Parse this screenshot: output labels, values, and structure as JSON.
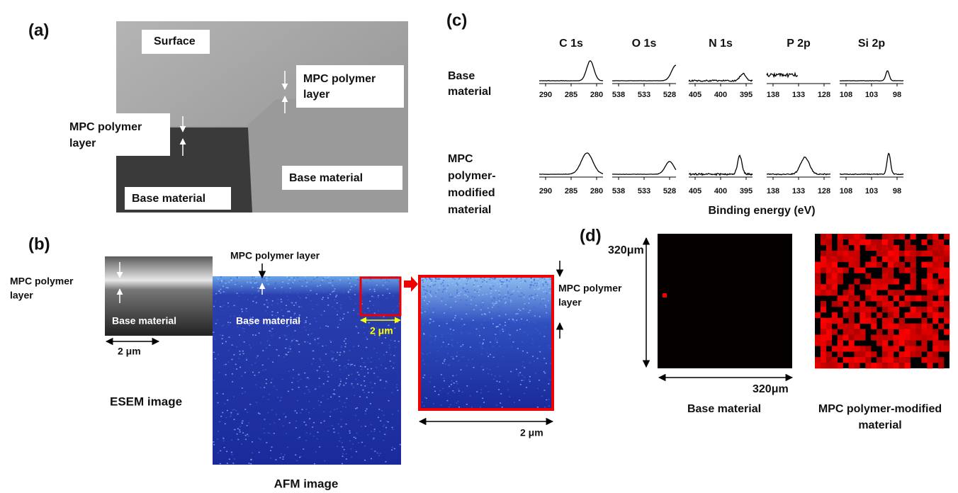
{
  "panel_a": {
    "label": "(a)",
    "surface": "Surface",
    "layer_right": [
      "MPC polymer",
      "layer"
    ],
    "layer_left": [
      "MPC polymer",
      "layer"
    ],
    "base_left": "Base material",
    "base_right": "Base material"
  },
  "panel_b": {
    "label": "(b)",
    "esem_layer": [
      "MPC polymer",
      "layer"
    ],
    "esem_base": "Base material",
    "esem_scale": "2 μm",
    "esem_caption": "ESEM image",
    "afm_layer": "MPC polymer layer",
    "afm_base": "Base material",
    "afm_inset_scale": "2 μm",
    "zoom_layer": [
      "MPC polymer",
      "layer"
    ],
    "zoom_scale": "2 μm",
    "afm_caption": "AFM image"
  },
  "panel_c": {
    "label": "(c)",
    "columns": [
      "C 1s",
      "O 1s",
      "N 1s",
      "P 2p",
      "Si 2p"
    ],
    "rows": [
      [
        "Base",
        "material"
      ],
      [
        "MPC",
        "polymer-",
        "modified",
        "material"
      ]
    ],
    "ticks": [
      [
        290,
        285,
        280
      ],
      [
        538,
        533,
        528
      ],
      [
        405,
        400,
        395
      ],
      [
        138,
        133,
        128
      ],
      [
        108,
        103,
        98
      ]
    ],
    "xlabel": "Binding energy (eV)"
  },
  "panel_d": {
    "label": "(d)",
    "scale_y": "320μm",
    "scale_x": "320μm",
    "left_caption": "Base material",
    "right_caption": [
      "MPC polymer-modified",
      "material"
    ]
  }
}
